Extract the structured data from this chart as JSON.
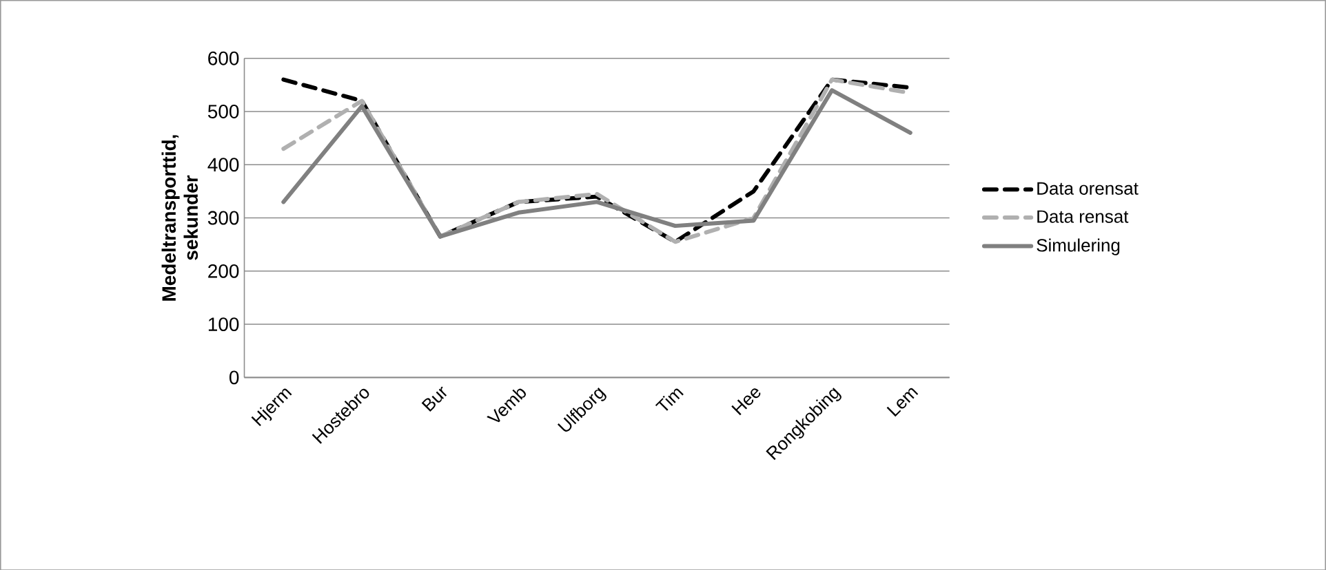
{
  "chart_data": {
    "type": "line",
    "ylabel": "Medeltransporttid, sekunder",
    "categories": [
      "Hjerm",
      "Hostebro",
      "Bur",
      "Vemb",
      "Ulfborg",
      "Tim",
      "Hee",
      "Rongkobing",
      "Lem"
    ],
    "series": [
      {
        "name": "Data orensat",
        "color": "#000000",
        "line_style": "dashed",
        "values": [
          560,
          520,
          265,
          330,
          340,
          255,
          350,
          560,
          545
        ]
      },
      {
        "name": "Data rensat",
        "color": "#b0b0b0",
        "line_style": "dashed",
        "values": [
          430,
          520,
          265,
          330,
          345,
          255,
          300,
          560,
          535
        ]
      },
      {
        "name": "Simulering",
        "color": "#808080",
        "line_style": "solid",
        "values": [
          330,
          510,
          265,
          310,
          330,
          285,
          295,
          540,
          460
        ]
      }
    ],
    "ylim": [
      0,
      600
    ],
    "yticks": [
      0,
      100,
      200,
      300,
      400,
      500,
      600
    ],
    "grid": "y",
    "legend": "right",
    "marker": "none"
  }
}
